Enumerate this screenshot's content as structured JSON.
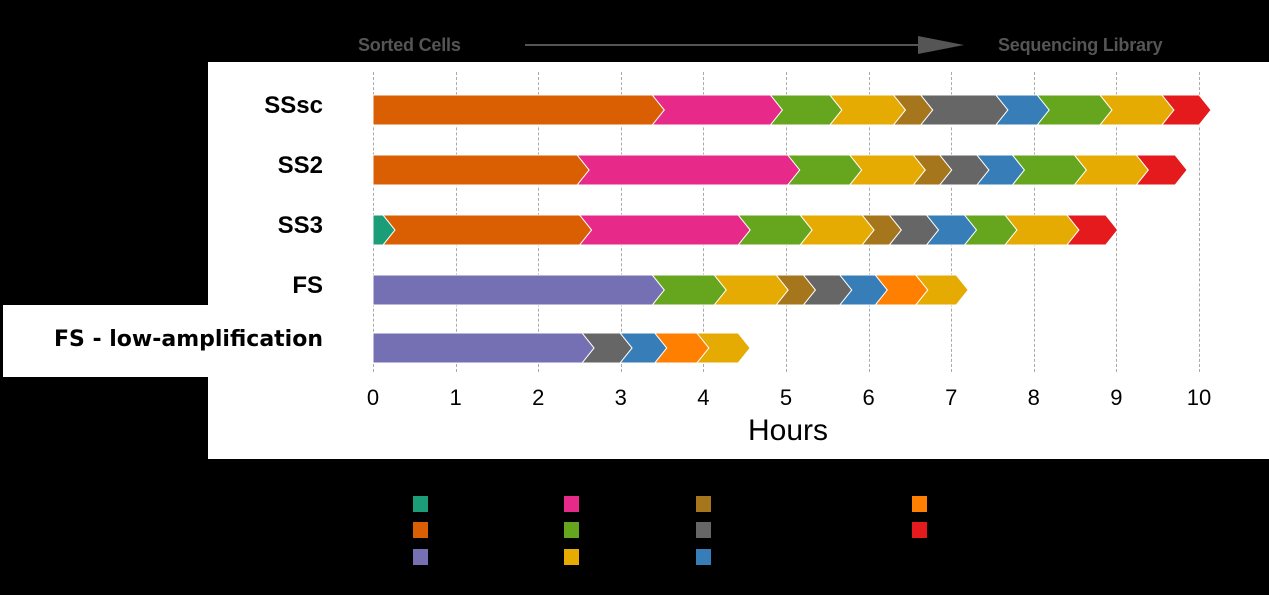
{
  "header": {
    "start_label": "Sorted Cells",
    "end_label": "Sequencing Library"
  },
  "colors": {
    "teal": "#1b9e77",
    "dark_orange": "#d95f02",
    "purple": "#7570b3",
    "pink": "#e7298a",
    "green": "#66a61e",
    "gold": "#e6ab02",
    "brown": "#a6761d",
    "gray": "#666666",
    "blue": "#377eb8",
    "orange": "#ff7f00",
    "red": "#e41a1c"
  },
  "chart_data": {
    "type": "bar",
    "subtype": "stacked-horizontal-chevron-timeline",
    "title": "",
    "xlabel": "Hours",
    "ylabel": "",
    "xlim": [
      0,
      10
    ],
    "xticks": [
      0,
      1,
      2,
      3,
      4,
      5,
      6,
      7,
      8,
      9,
      10
    ],
    "grid": "vertical dashed",
    "annotation": {
      "left": "Sorted Cells",
      "right": "Sequencing Library",
      "arrow": "left-to-right"
    },
    "categories": [
      "SSsc",
      "SS2",
      "SS3",
      "FS",
      "FS - low-amplification"
    ],
    "rows": [
      {
        "label": "SSsc",
        "segments": [
          {
            "color": "dark_orange",
            "start": 0.0,
            "end": 3.38
          },
          {
            "color": "pink",
            "start": 3.38,
            "end": 4.81
          },
          {
            "color": "green",
            "start": 4.81,
            "end": 5.53
          },
          {
            "color": "gold",
            "start": 5.53,
            "end": 6.3
          },
          {
            "color": "brown",
            "start": 6.3,
            "end": 6.63
          },
          {
            "color": "gray",
            "start": 6.63,
            "end": 7.54
          },
          {
            "color": "blue",
            "start": 7.54,
            "end": 8.04
          },
          {
            "color": "green",
            "start": 8.04,
            "end": 8.8
          },
          {
            "color": "gold",
            "start": 8.8,
            "end": 9.55
          },
          {
            "color": "red",
            "start": 9.55,
            "end": 10.0
          }
        ]
      },
      {
        "label": "SS2",
        "segments": [
          {
            "color": "dark_orange",
            "start": 0.0,
            "end": 2.47
          },
          {
            "color": "pink",
            "start": 2.47,
            "end": 5.02
          },
          {
            "color": "green",
            "start": 5.02,
            "end": 5.77
          },
          {
            "color": "gold",
            "start": 5.77,
            "end": 6.54
          },
          {
            "color": "brown",
            "start": 6.54,
            "end": 6.86
          },
          {
            "color": "gray",
            "start": 6.86,
            "end": 7.31
          },
          {
            "color": "blue",
            "start": 7.31,
            "end": 7.74
          },
          {
            "color": "green",
            "start": 7.74,
            "end": 8.49
          },
          {
            "color": "gold",
            "start": 8.49,
            "end": 9.24
          },
          {
            "color": "red",
            "start": 9.24,
            "end": 9.71
          }
        ]
      },
      {
        "label": "SS3",
        "segments": [
          {
            "color": "teal",
            "start": 0.0,
            "end": 0.12
          },
          {
            "color": "dark_orange",
            "start": 0.12,
            "end": 2.5
          },
          {
            "color": "pink",
            "start": 2.5,
            "end": 4.42
          },
          {
            "color": "green",
            "start": 4.42,
            "end": 5.17
          },
          {
            "color": "gold",
            "start": 5.17,
            "end": 5.92
          },
          {
            "color": "brown",
            "start": 5.92,
            "end": 6.25
          },
          {
            "color": "gray",
            "start": 6.25,
            "end": 6.7
          },
          {
            "color": "blue",
            "start": 6.7,
            "end": 7.16
          },
          {
            "color": "green",
            "start": 7.16,
            "end": 7.65
          },
          {
            "color": "gold",
            "start": 7.65,
            "end": 8.4
          },
          {
            "color": "red",
            "start": 8.4,
            "end": 8.87
          }
        ]
      },
      {
        "label": "FS",
        "segments": [
          {
            "color": "purple",
            "start": 0.0,
            "end": 3.38
          },
          {
            "color": "green",
            "start": 3.38,
            "end": 4.13
          },
          {
            "color": "gold",
            "start": 4.13,
            "end": 4.88
          },
          {
            "color": "brown",
            "start": 4.88,
            "end": 5.21
          },
          {
            "color": "gray",
            "start": 5.21,
            "end": 5.65
          },
          {
            "color": "blue",
            "start": 5.65,
            "end": 6.08
          },
          {
            "color": "orange",
            "start": 6.08,
            "end": 6.57
          },
          {
            "color": "gold",
            "start": 6.57,
            "end": 7.06
          }
        ]
      },
      {
        "label": "FS - low-amplification",
        "segments": [
          {
            "color": "purple",
            "start": 0.0,
            "end": 2.53
          },
          {
            "color": "gray",
            "start": 2.53,
            "end": 2.99
          },
          {
            "color": "blue",
            "start": 2.99,
            "end": 3.41
          },
          {
            "color": "orange",
            "start": 3.41,
            "end": 3.92
          },
          {
            "color": "gold",
            "start": 3.92,
            "end": 4.42
          }
        ]
      }
    ],
    "legend": {
      "position": "bottom",
      "entries": [
        {
          "color": "#1b9e77",
          "label": ""
        },
        {
          "color": "#d95f02",
          "label": ""
        },
        {
          "color": "#7570b3",
          "label": ""
        },
        {
          "color": "#e7298a",
          "label": ""
        },
        {
          "color": "#66a61e",
          "label": ""
        },
        {
          "color": "#e6ab02",
          "label": ""
        },
        {
          "color": "#a6761d",
          "label": ""
        },
        {
          "color": "#666666",
          "label": ""
        },
        {
          "color": "#377eb8",
          "label": ""
        },
        {
          "color": "#ff7f00",
          "label": ""
        },
        {
          "color": "#e41a1c",
          "label": ""
        }
      ]
    }
  }
}
